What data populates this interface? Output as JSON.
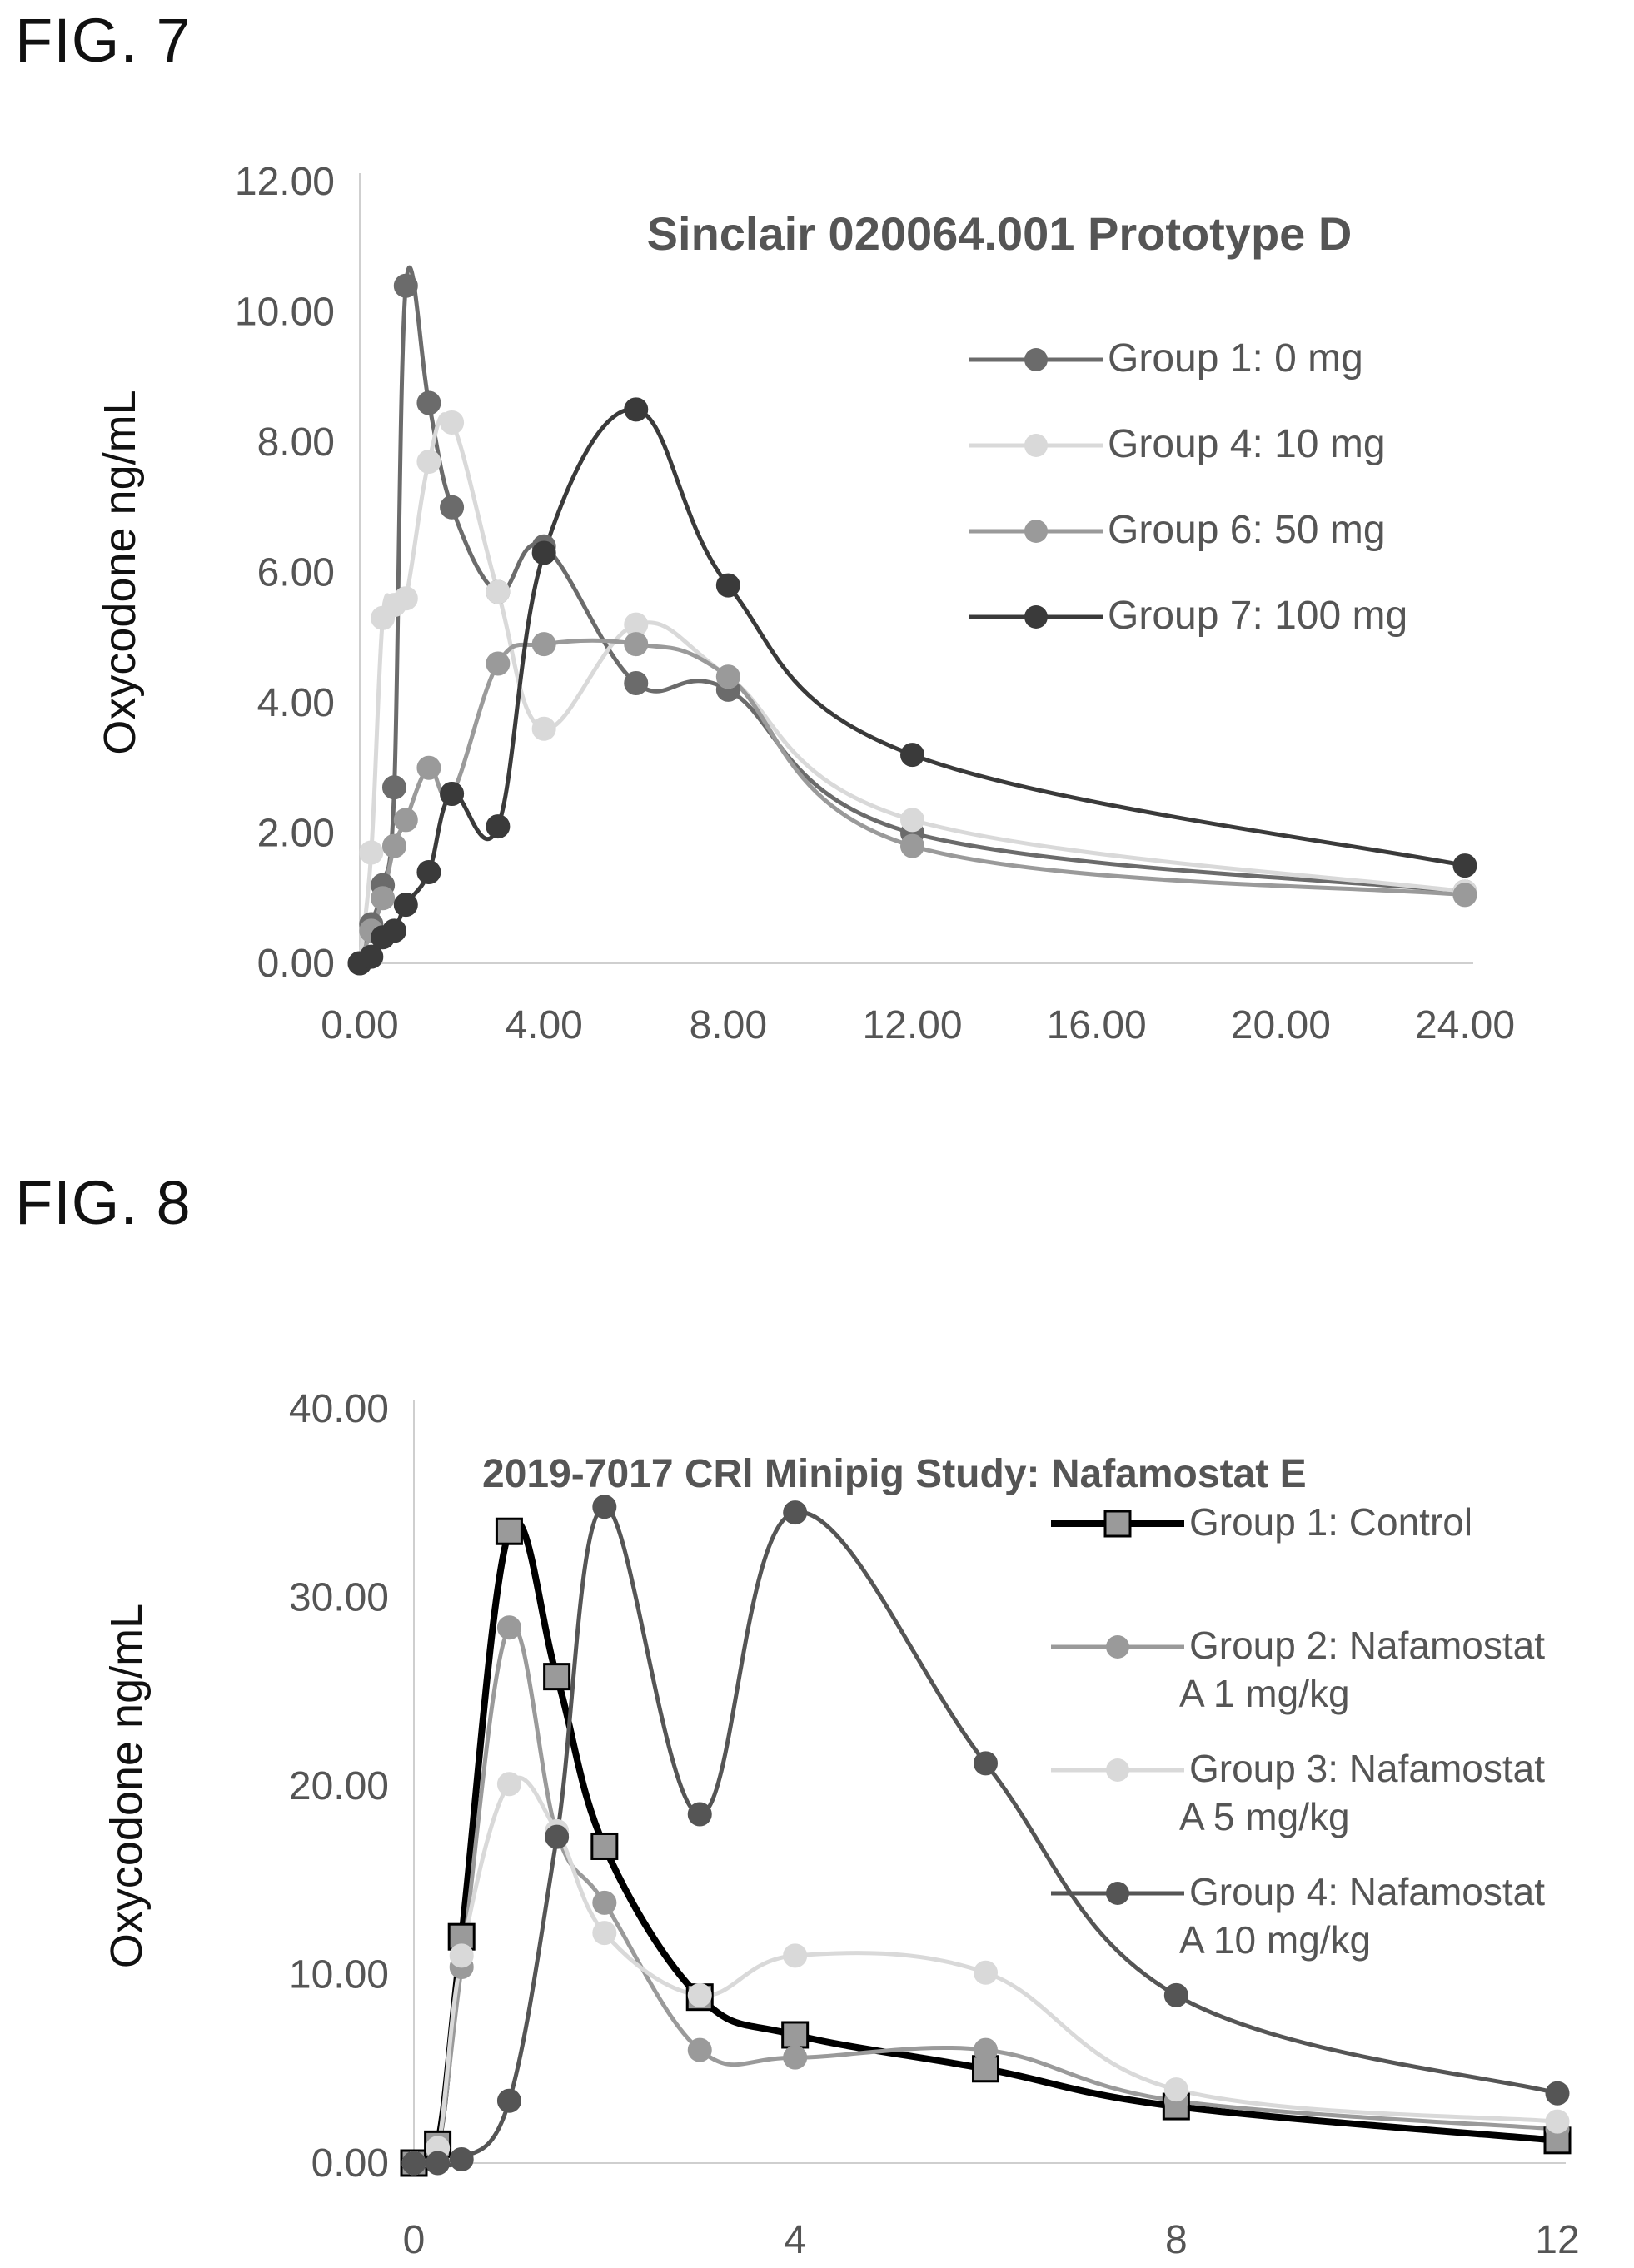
{
  "figures": [
    {
      "label": "FIG. 7",
      "chart_data": {
        "type": "line",
        "title": "Sinclair 020064.001 Prototype D",
        "xlabel": "",
        "ylabel": "Oxycodone ng/mL",
        "xlim": [
          0,
          24
        ],
        "ylim": [
          0,
          12
        ],
        "x_ticks": [
          "0.00",
          "4.00",
          "8.00",
          "12.00",
          "16.00",
          "20.00",
          "24.00"
        ],
        "y_ticks": [
          "0.00",
          "2.00",
          "4.00",
          "6.00",
          "8.00",
          "10.00",
          "12.00"
        ],
        "grid": false,
        "legend_position": "right",
        "series": [
          {
            "name": "Group 1:  0 mg",
            "color": "#6b6b6b",
            "marker": "circle",
            "x": [
              0,
              0.25,
              0.5,
              0.75,
              1,
              1.5,
              2,
              3,
              4,
              6,
              8,
              12,
              24
            ],
            "y": [
              0,
              0.6,
              1.2,
              2.7,
              10.4,
              8.6,
              7.0,
              5.7,
              6.4,
              4.3,
              4.2,
              2.0,
              1.1
            ]
          },
          {
            "name": "Group 4:  10 mg",
            "color": "#d9d9d9",
            "marker": "circle",
            "x": [
              0,
              0.25,
              0.5,
              0.75,
              1,
              1.5,
              2,
              3,
              4,
              6,
              8,
              12,
              24
            ],
            "y": [
              0,
              1.7,
              5.3,
              5.5,
              5.6,
              7.7,
              8.3,
              5.7,
              3.6,
              5.2,
              4.4,
              2.2,
              1.1
            ]
          },
          {
            "name": "Group 6:  50 mg",
            "color": "#9a9a9a",
            "marker": "circle",
            "x": [
              0,
              0.25,
              0.5,
              0.75,
              1,
              1.5,
              2,
              3,
              4,
              6,
              8,
              12,
              24
            ],
            "y": [
              0,
              0.5,
              1.0,
              1.8,
              2.2,
              3.0,
              2.6,
              4.6,
              4.9,
              4.9,
              4.4,
              1.8,
              1.05
            ]
          },
          {
            "name": "Group 7:  100 mg",
            "color": "#3a3a3a",
            "marker": "circle",
            "x": [
              0,
              0.25,
              0.5,
              0.75,
              1,
              1.5,
              2,
              3,
              4,
              6,
              8,
              12,
              24
            ],
            "y": [
              0,
              0.1,
              0.4,
              0.5,
              0.9,
              1.4,
              2.6,
              2.1,
              6.3,
              8.5,
              5.8,
              3.2,
              1.5
            ]
          }
        ]
      }
    },
    {
      "label": "FIG. 8",
      "chart_data": {
        "type": "line",
        "title": "2019-7017 CRl Minipig Study:  Nafamostat E",
        "xlabel": "",
        "ylabel": "Oxycodone ng/mL",
        "xlim": [
          0,
          12
        ],
        "ylim": [
          0,
          40
        ],
        "x_ticks": [
          "0",
          "4",
          "8",
          "12"
        ],
        "y_ticks": [
          "0.00",
          "10.00",
          "20.00",
          "30.00",
          "40.00"
        ],
        "grid": false,
        "legend_position": "right",
        "series": [
          {
            "name": "Group 1:  Control",
            "legend_lines": [
              "Group 1:  Control"
            ],
            "color": "#000000",
            "marker": "square",
            "x": [
              0,
              0.25,
              0.5,
              1,
              1.5,
              2,
              3,
              4,
              6,
              8,
              12
            ],
            "y": [
              0,
              1.0,
              12.0,
              33.5,
              25.8,
              16.8,
              8.8,
              6.8,
              5.0,
              3.0,
              1.2
            ]
          },
          {
            "name": "Group 2:  Nafamostat A 1 mg/kg",
            "legend_lines": [
              "Group 2:  Nafamostat",
              "A 1 mg/kg"
            ],
            "color": "#9a9a9a",
            "marker": "circle",
            "x": [
              0,
              0.25,
              0.5,
              1,
              1.5,
              2,
              3,
              4,
              6,
              8,
              12
            ],
            "y": [
              0,
              0.8,
              10.4,
              28.4,
              17.5,
              13.8,
              6.0,
              5.6,
              6.0,
              3.3,
              1.8
            ]
          },
          {
            "name": "Group 3:  Nafamostat A 5 mg/kg",
            "legend_lines": [
              "Group 3:  Nafamostat",
              "A 5 mg/kg"
            ],
            "color": "#d9d9d9",
            "marker": "circle",
            "x": [
              0,
              0.25,
              0.5,
              1,
              1.5,
              2,
              3,
              4,
              6,
              8,
              12
            ],
            "y": [
              0,
              0.8,
              11.0,
              20.1,
              17.6,
              12.2,
              8.9,
              11.0,
              10.1,
              3.9,
              2.2
            ]
          },
          {
            "name": "Group 4:  Nafamostat A 10 mg/kg",
            "legend_lines": [
              "Group 4:  Nafamostat",
              "A 10 mg/kg"
            ],
            "color": "#555555",
            "marker": "circle",
            "x": [
              0,
              0.25,
              0.5,
              1,
              1.5,
              2,
              3,
              4,
              6,
              8,
              12
            ],
            "y": [
              0,
              0,
              0.2,
              3.3,
              17.3,
              34.8,
              18.5,
              34.5,
              21.2,
              8.9,
              3.7
            ]
          }
        ]
      }
    }
  ]
}
